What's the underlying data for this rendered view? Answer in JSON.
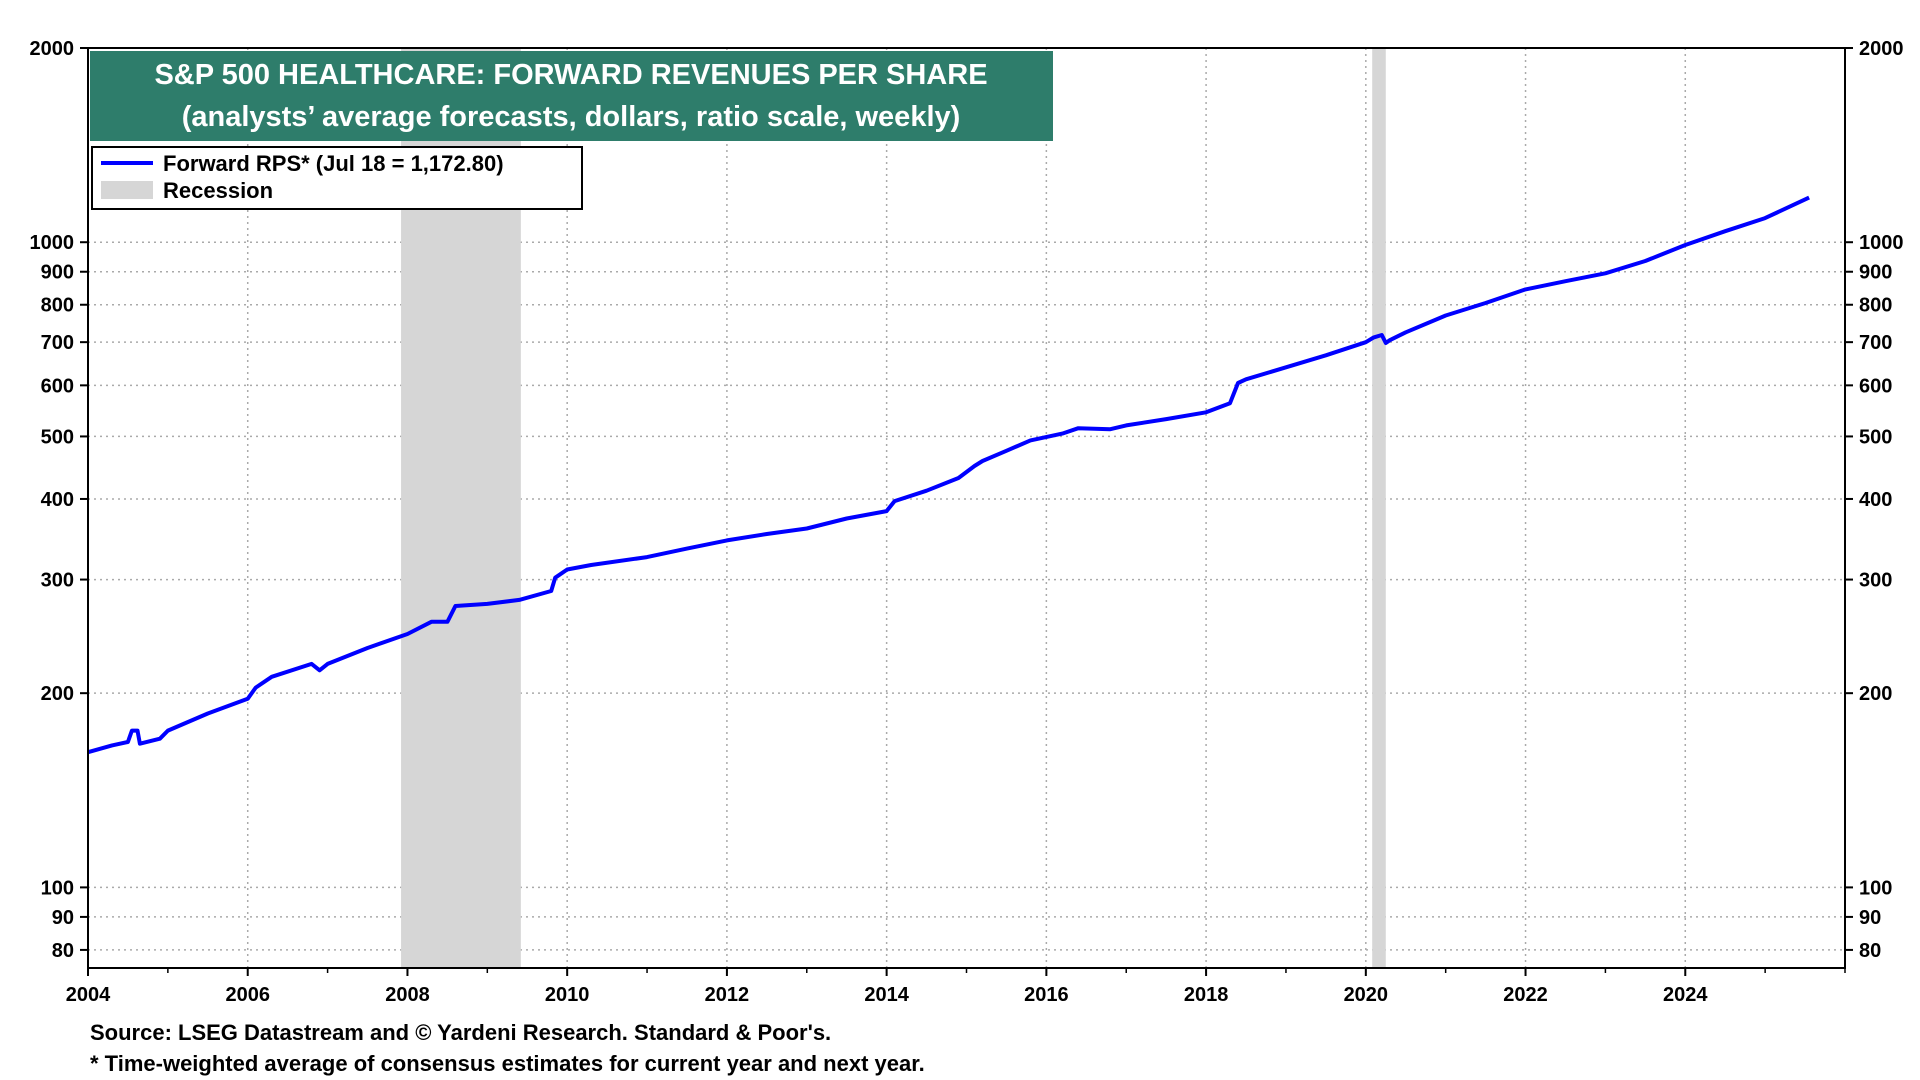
{
  "chart_data": {
    "type": "line",
    "title": "S&P 500 HEALTHCARE: FORWARD REVENUES PER SHARE",
    "subtitle": "(analysts’ average forecasts, dollars, ratio scale, weekly)",
    "y_scale": "log",
    "ylim": [
      75,
      2000
    ],
    "xlim": [
      2004,
      2026.0
    ],
    "grid": true,
    "legend_position": "top-left",
    "x_ticks": [
      "2004",
      "2006",
      "2008",
      "2010",
      "2012",
      "2014",
      "2016",
      "2018",
      "2020",
      "2022",
      "2024"
    ],
    "y_ticks": [
      "2000",
      "1000",
      "900",
      "800",
      "700",
      "600",
      "500",
      "400",
      "300",
      "200",
      "100",
      "90",
      "80"
    ],
    "series": [
      {
        "name": "Forward RPS* (Jul 18 = 1,172.80)",
        "color": "#0000ff",
        "x": [
          2004.0,
          2004.3,
          2004.5,
          2004.55,
          2004.62,
          2004.65,
          2004.9,
          2005.0,
          2005.5,
          2006.0,
          2006.1,
          2006.3,
          2006.8,
          2006.9,
          2007.0,
          2007.5,
          2008.0,
          2008.3,
          2008.5,
          2008.6,
          2009.0,
          2009.4,
          2009.8,
          2009.85,
          2010.0,
          2010.3,
          2011.0,
          2011.5,
          2012.0,
          2012.5,
          2013.0,
          2013.5,
          2014.0,
          2014.1,
          2014.5,
          2014.9,
          2015.1,
          2015.2,
          2015.5,
          2015.8,
          2016.2,
          2016.4,
          2016.8,
          2017.0,
          2017.5,
          2018.0,
          2018.3,
          2018.4,
          2018.5,
          2019.0,
          2019.5,
          2020.0,
          2020.1,
          2020.2,
          2020.25,
          2020.3,
          2020.5,
          2021.0,
          2021.5,
          2022.0,
          2022.5,
          2023.0,
          2023.5,
          2024.0,
          2024.5,
          2025.0,
          2025.55
        ],
        "y": [
          162,
          166,
          168,
          175,
          175,
          167,
          170,
          175,
          186,
          196,
          204,
          212,
          222,
          217,
          222,
          235,
          247,
          258,
          258,
          273,
          275,
          279,
          288,
          302,
          311,
          316,
          325,
          335,
          345,
          353,
          360,
          373,
          383,
          397,
          412,
          431,
          450,
          458,
          475,
          493,
          505,
          515,
          513,
          520,
          532,
          545,
          563,
          605,
          613,
          640,
          668,
          700,
          712,
          718,
          698,
          705,
          725,
          770,
          805,
          845,
          870,
          895,
          935,
          990,
          1040,
          1090,
          1172.8
        ]
      }
    ],
    "recessions": [
      {
        "name": "Recession",
        "start": 2007.92,
        "end": 2009.42
      },
      {
        "name": "Recession",
        "start": 2020.08,
        "end": 2020.25
      }
    ],
    "legend": [
      {
        "label": "Forward RPS* (Jul 18 = 1,172.80)",
        "color": "#0000ff"
      },
      {
        "label": "Recession",
        "color": "#d6d6d6"
      }
    ],
    "notes": [
      "Source: LSEG Datastream and © Yardeni Research. Standard & Poor's.",
      "* Time-weighted average of consensus estimates for current year and next year."
    ],
    "title_bg_color": "#2e7d6b",
    "recession_color": "#d6d6d6"
  }
}
